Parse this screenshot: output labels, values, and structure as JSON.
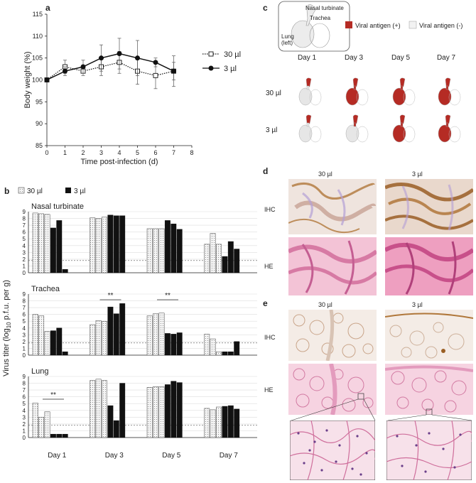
{
  "panel_letters": {
    "a": "a",
    "b": "b",
    "c": "c",
    "d": "d",
    "e": "e"
  },
  "colors": {
    "antigen_pos": "#b52b24",
    "antigen_neg": "#f2f2f2",
    "bar_dark": "#111111",
    "bar_dotted": "#cfcfcf",
    "tissue_pink": "#ea9bb8",
    "tissue_ihc": "#efe4de",
    "stain_brown": "#b0773a"
  },
  "chart_data": [
    {
      "type": "line",
      "panel": "a",
      "ylabel": "Body weight (%)",
      "xlabel": "Time post-infection (d)",
      "xlim": [
        0,
        8
      ],
      "ylim": [
        85,
        115
      ],
      "xticks": [
        0,
        1,
        2,
        3,
        4,
        5,
        6,
        7,
        8
      ],
      "yticks": [
        85,
        90,
        95,
        100,
        105,
        110,
        115
      ],
      "legend_position": "right",
      "series": [
        {
          "name": "30 µl",
          "marker": "open-square",
          "line": "dotted",
          "x": [
            0,
            1,
            2,
            3,
            4,
            5,
            6,
            7
          ],
          "y": [
            100,
            103,
            102,
            103,
            104,
            102,
            101,
            102
          ],
          "err": [
            0,
            1.5,
            1,
            2,
            2.5,
            3,
            3,
            3.5
          ]
        },
        {
          "name": "3 µl",
          "marker": "filled-circle",
          "line": "solid",
          "x": [
            0,
            1,
            2,
            3,
            4,
            5,
            6,
            7
          ],
          "y": [
            100,
            102,
            103,
            105,
            106,
            105,
            104,
            102
          ],
          "err": [
            0,
            1,
            1.5,
            3,
            3.5,
            4,
            1,
            2
          ]
        }
      ]
    },
    {
      "type": "bar",
      "panel": "b",
      "ylabel_main": "Virus titer (log",
      "ylabel_sub": "10",
      "ylabel_rest": " p.f.u. per g)",
      "legend": [
        {
          "name": "30 µl",
          "style": "dotted"
        },
        {
          "name": "3 µl",
          "style": "solid"
        }
      ],
      "categories": [
        "Day 1",
        "Day 3",
        "Day 5",
        "Day 7"
      ],
      "ylim": [
        0,
        9
      ],
      "yticks": [
        0,
        1,
        2,
        3,
        4,
        5,
        6,
        7,
        8,
        9
      ],
      "detection_limit": 1.8,
      "panels": [
        {
          "title": "Nasal turbinate",
          "values_30": [
            [
              8.8,
              8.7,
              8.6
            ],
            [
              8.1,
              8.0,
              8.2
            ],
            [
              6.5,
              6.5,
              6.5
            ],
            [
              4.2,
              5.8,
              4.2
            ]
          ],
          "values_3": [
            [
              6.6,
              7.7,
              0.5
            ],
            [
              8.5,
              8.4,
              8.4
            ],
            [
              7.7,
              7.2,
              6.4
            ],
            [
              2.4,
              4.6,
              3.5
            ]
          ],
          "sig": []
        },
        {
          "title": "Trachea",
          "values_30": [
            [
              6.0,
              5.8,
              3.5
            ],
            [
              4.5,
              5.1,
              5.0
            ],
            [
              5.8,
              6.1,
              6.2
            ],
            [
              3.1,
              2.4,
              0.5
            ]
          ],
          "values_3": [
            [
              3.6,
              4.0,
              0.5
            ],
            [
              7.1,
              6.1,
              7.6
            ],
            [
              3.2,
              3.1,
              3.3
            ],
            [
              0.5,
              0.5,
              2.0
            ]
          ],
          "sig": [
            {
              "category": 1,
              "label": "**"
            },
            {
              "category": 2,
              "label": "**"
            }
          ]
        },
        {
          "title": "Lung",
          "values_30": [
            [
              5.1,
              3.0,
              3.8
            ],
            [
              8.4,
              8.6,
              8.4
            ],
            [
              7.4,
              7.5,
              7.5
            ],
            [
              4.3,
              4.1,
              4.5
            ]
          ],
          "values_3": [
            [
              0.5,
              0.5,
              0.5
            ],
            [
              4.7,
              2.5,
              8.0
            ],
            [
              7.8,
              8.3,
              8.1
            ],
            [
              4.6,
              4.7,
              4.2
            ]
          ],
          "sig": [
            {
              "category": 0,
              "label": "**"
            }
          ]
        }
      ]
    }
  ],
  "panel_c": {
    "labels": {
      "nasal": "Nasal turbinate",
      "trachea": "Trachea",
      "lung": "Lung",
      "lung_side": "(left)"
    },
    "legend_pos": "Viral antigen (+)",
    "legend_neg": "Viral antigen (-)",
    "days": [
      "Day 1",
      "Day 3",
      "Day 5",
      "Day 7"
    ],
    "rows": [
      "30 µl",
      "3 µl"
    ],
    "grid": [
      [
        {
          "nasal": 1,
          "trachea": 0,
          "lung": 0
        },
        {
          "nasal": 1,
          "trachea": 1,
          "lung": 1
        },
        {
          "nasal": 1,
          "trachea": 1,
          "lung": 1
        },
        {
          "nasal": 1,
          "trachea": 1,
          "lung": 1
        }
      ],
      [
        {
          "nasal": 1,
          "trachea": 0,
          "lung": 0
        },
        {
          "nasal": 1,
          "trachea": 1,
          "lung": 0
        },
        {
          "nasal": 1,
          "trachea": 1,
          "lung": 1
        },
        {
          "nasal": 1,
          "trachea": 1,
          "lung": 1
        }
      ]
    ]
  },
  "panel_d": {
    "col_labels": [
      "30 µl",
      "3 µl"
    ],
    "row_labels": [
      "IHC",
      "HE"
    ]
  },
  "panel_e": {
    "col_labels": [
      "30 µl",
      "3 µl"
    ],
    "row_labels": [
      "IHC",
      "HE"
    ]
  }
}
